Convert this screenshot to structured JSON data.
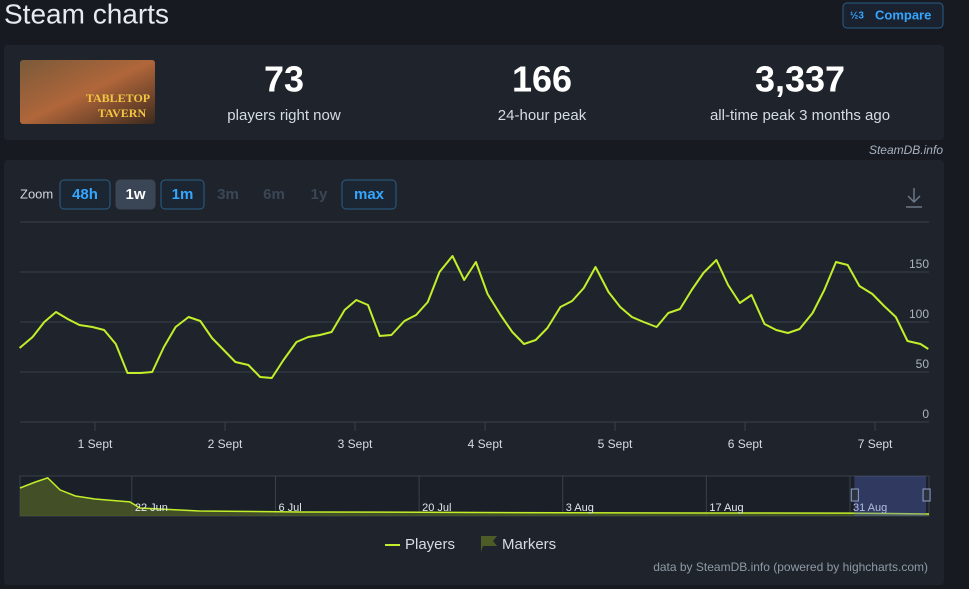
{
  "header": {
    "title": "Steam charts",
    "compare": "Compare"
  },
  "thumbnail": {
    "line1": "TABLETOP",
    "line2": "TAVERN"
  },
  "stats": [
    {
      "value": "73",
      "label": "players right now"
    },
    {
      "value": "166",
      "label": "24-hour peak"
    },
    {
      "value": "3,337",
      "label": "all-time peak 3 months ago"
    }
  ],
  "source": "SteamDB.info",
  "zoom": {
    "label": "Zoom",
    "buttons": [
      "48h",
      "1w",
      "1m",
      "3m",
      "6m",
      "1y",
      "max"
    ],
    "active": 1,
    "disabled": [
      3,
      4,
      5
    ]
  },
  "chart_data": {
    "type": "line",
    "x": [
      0.42,
      0.52,
      0.61,
      0.7,
      0.79,
      0.88,
      0.98,
      1.07,
      1.16,
      1.25,
      1.35,
      1.44,
      1.53,
      1.62,
      1.72,
      1.81,
      1.9,
      1.99,
      2.08,
      2.18,
      2.27,
      2.36,
      2.45,
      2.55,
      2.64,
      2.73,
      2.82,
      2.92,
      3.01,
      3.1,
      3.19,
      3.28,
      3.38,
      3.47,
      3.56,
      3.65,
      3.75,
      3.84,
      3.93,
      4.02,
      4.12,
      4.21,
      4.3,
      4.39,
      4.48,
      4.58,
      4.67,
      4.76,
      4.85,
      4.95,
      5.04,
      5.13,
      5.22,
      5.32,
      5.41,
      5.5,
      5.59,
      5.68,
      5.78,
      5.87,
      5.96,
      6.05,
      6.15,
      6.24,
      6.33,
      6.42,
      6.52,
      6.61,
      6.7,
      6.79,
      6.88,
      6.98,
      7.07,
      7.16,
      7.25,
      7.35,
      7.41
    ],
    "series": [
      {
        "name": "Players",
        "color": "#c2ee2a",
        "values": [
          74,
          85,
          100,
          110,
          103,
          97,
          95,
          92,
          78,
          49,
          49,
          50,
          75,
          95,
          105,
          101,
          84,
          72,
          60,
          57,
          45,
          44,
          62,
          80,
          85,
          87,
          90,
          112,
          122,
          117,
          86,
          87,
          101,
          107,
          120,
          150,
          166,
          142,
          160,
          128,
          107,
          90,
          78,
          82,
          94,
          115,
          121,
          134,
          155,
          130,
          115,
          105,
          100,
          95,
          109,
          113,
          132,
          149,
          162,
          137,
          119,
          127,
          98,
          92,
          89,
          93,
          109,
          132,
          160,
          157,
          136,
          128,
          116,
          105,
          81,
          78,
          73
        ]
      }
    ],
    "markers": {
      "name": "Markers",
      "color": "#4d5c27"
    },
    "xlim": [
      0.423,
      7.415
    ],
    "xticks": [
      {
        "value": 1,
        "label": "1 Sept"
      },
      {
        "value": 2,
        "label": "2 Sept"
      },
      {
        "value": 3,
        "label": "3 Sept"
      },
      {
        "value": 4,
        "label": "4 Sept"
      },
      {
        "value": 5,
        "label": "5 Sept"
      },
      {
        "value": 6,
        "label": "6 Sept"
      },
      {
        "value": 7,
        "label": "7 Sept"
      }
    ],
    "ylim": [
      0,
      200
    ],
    "yticks": [
      0,
      50,
      100,
      150
    ],
    "grid": true
  },
  "navigator": {
    "type": "area",
    "color": "#c2ee2a",
    "fill": "#4d5c27",
    "x": [
      -80.9,
      -79.4,
      -78.2,
      -77.0,
      -75.5,
      -73.6,
      -70.2,
      -69.2,
      -63.4,
      -53.6,
      -41.9,
      -28.3,
      -14.6,
      0,
      7.7
    ],
    "values": [
      2450,
      2975,
      3330,
      2280,
      1750,
      1490,
      1230,
      700,
      440,
      350,
      330,
      280,
      260,
      250,
      175
    ],
    "xlim": [
      -80.9,
      7.7
    ],
    "ylim": [
      0,
      3500
    ],
    "xticks": [
      {
        "value": -70,
        "label": "22 Jun"
      },
      {
        "value": -56,
        "label": "6 Jul"
      },
      {
        "value": -42,
        "label": "20 Jul"
      },
      {
        "value": -28,
        "label": "3 Aug"
      },
      {
        "value": -14,
        "label": "17 Aug"
      },
      {
        "value": 0,
        "label": "31 Aug"
      }
    ]
  },
  "credit": "data by SteamDB.info (powered by highcharts.com)"
}
